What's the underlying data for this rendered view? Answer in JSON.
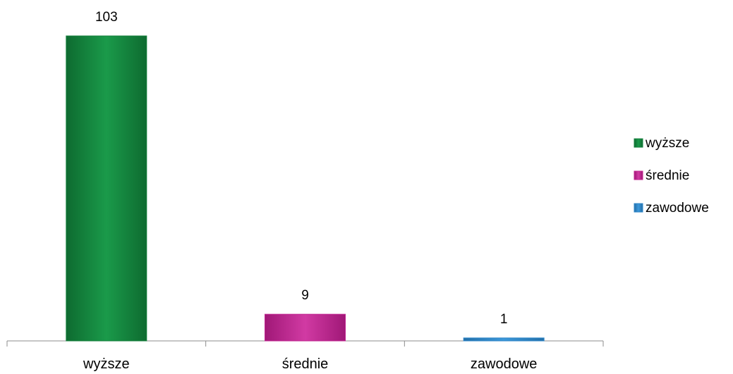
{
  "chart_data": {
    "type": "bar",
    "title": "",
    "xlabel": "",
    "ylabel": "",
    "categories": [
      "wyższe",
      "średnie",
      "zawodowe"
    ],
    "values": [
      103,
      9,
      1
    ],
    "colors": [
      "#14803c",
      "#c0238f",
      "#2f86c8"
    ],
    "ylim": [
      0,
      103
    ],
    "grid": false,
    "legend_position": "right",
    "legend": [
      "wyższe",
      "średnie",
      "zawodowe"
    ]
  }
}
